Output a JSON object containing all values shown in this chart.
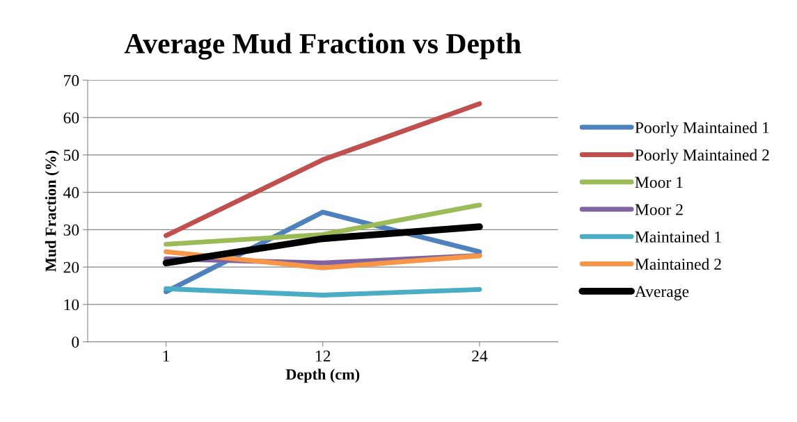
{
  "chart_data": {
    "type": "line",
    "title": "Average Mud Fraction vs Depth",
    "xlabel": "Depth (cm)",
    "ylabel": "Mud Fraction (%)",
    "categories": [
      "1",
      "12",
      "24"
    ],
    "series": [
      {
        "name": "Poorly Maintained 1",
        "color": "#4f81bd",
        "values": [
          13.4,
          34.7,
          24.1
        ]
      },
      {
        "name": "Poorly Maintained 2",
        "color": "#c0504d",
        "values": [
          28.4,
          48.7,
          63.7
        ]
      },
      {
        "name": "Moor 1",
        "color": "#9bbb59",
        "values": [
          26.1,
          28.7,
          36.6
        ]
      },
      {
        "name": "Moor 2",
        "color": "#8064a2",
        "values": [
          22.2,
          21.1,
          23.1
        ]
      },
      {
        "name": "Maintained 1",
        "color": "#4bacc6",
        "values": [
          14.2,
          12.5,
          14.0
        ]
      },
      {
        "name": "Maintained 2",
        "color": "#f79646",
        "values": [
          24.1,
          19.8,
          23.0
        ]
      },
      {
        "name": "Average",
        "color": "#000000",
        "values": [
          21.1,
          27.6,
          30.8
        ]
      }
    ],
    "ylim": [
      0,
      70
    ],
    "yticks": [
      0,
      10,
      20,
      30,
      40,
      50,
      60,
      70
    ],
    "grid": "y",
    "legend": "right",
    "marker": "none",
    "line_style": "solid"
  }
}
